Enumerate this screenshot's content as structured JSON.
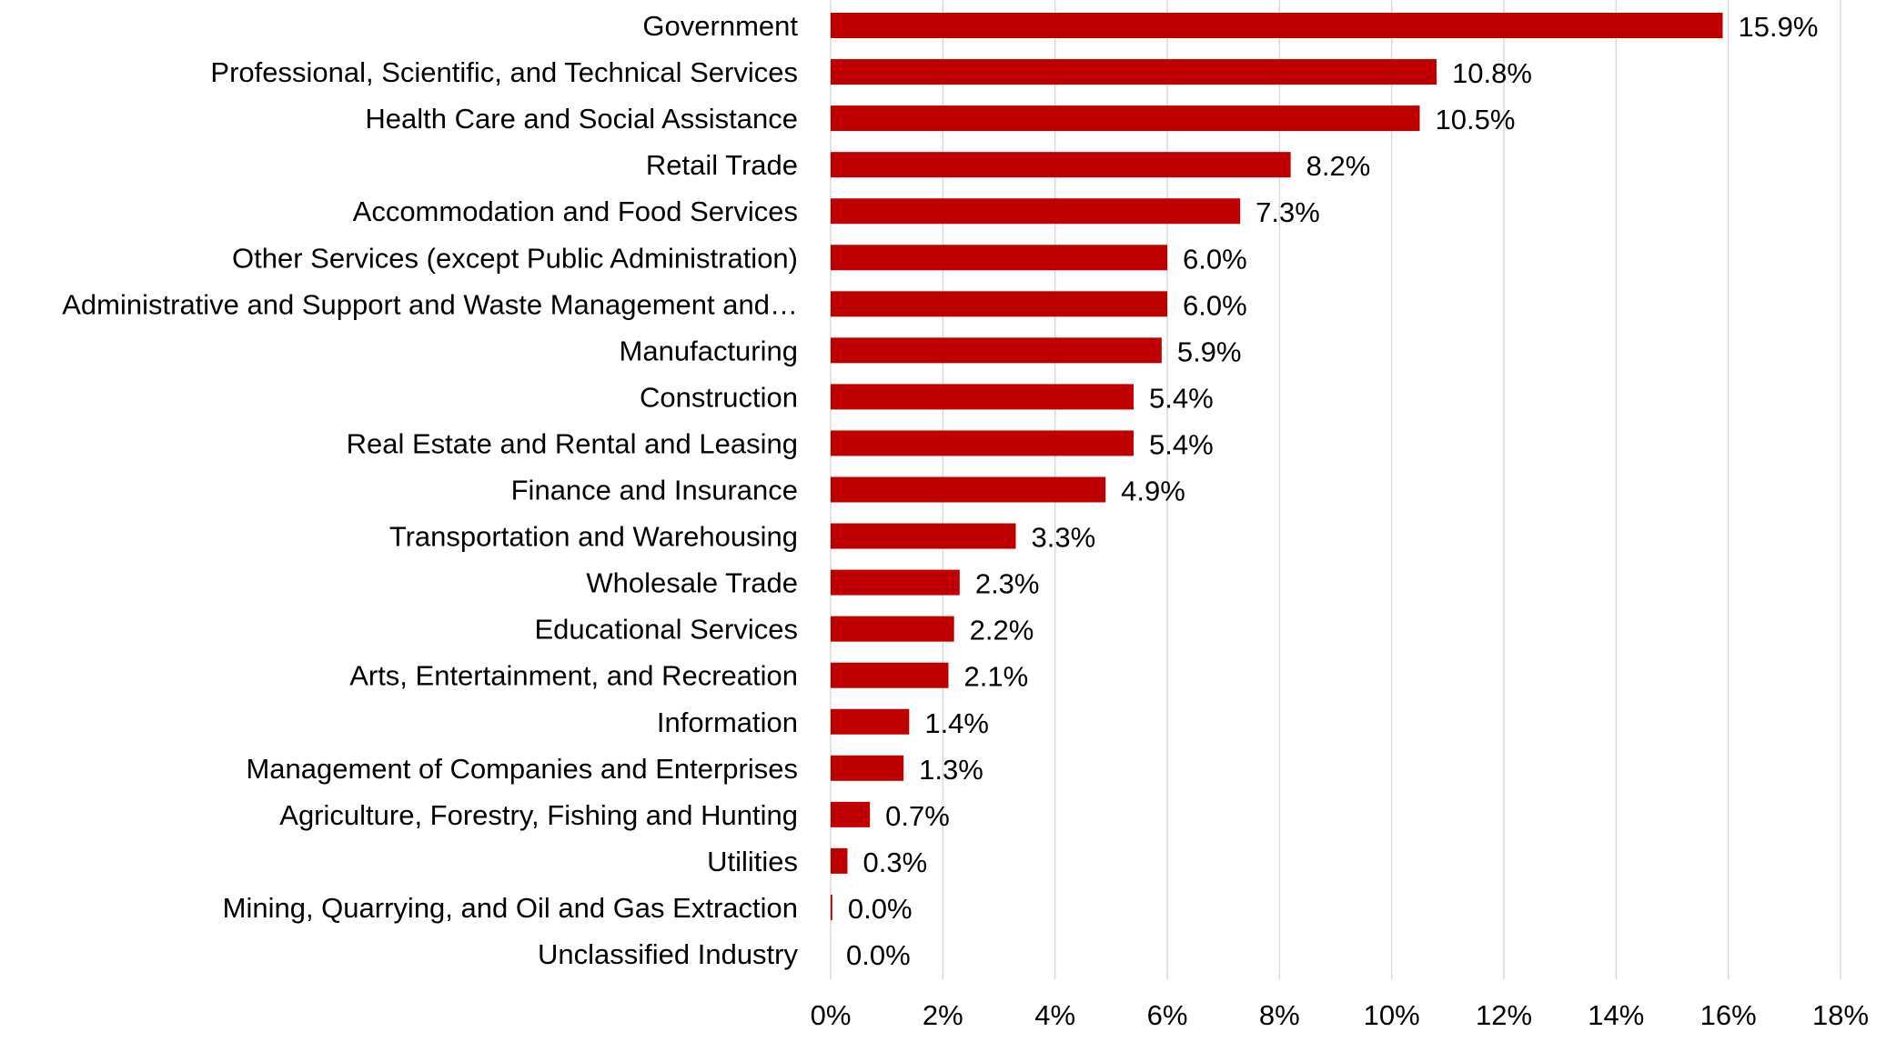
{
  "chart_data": {
    "type": "bar",
    "orientation": "horizontal",
    "title": "",
    "xlabel": "",
    "ylabel": "",
    "categories": [
      "Government",
      "Professional, Scientific, and Technical Services",
      "Health Care and Social Assistance",
      "Retail Trade",
      "Accommodation and Food Services",
      "Other Services (except Public Administration)",
      "Administrative and Support and Waste Management and…",
      "Manufacturing",
      "Construction",
      "Real Estate and Rental and Leasing",
      "Finance and Insurance",
      "Transportation and Warehousing",
      "Wholesale Trade",
      "Educational Services",
      "Arts, Entertainment, and Recreation",
      "Information",
      "Management of Companies and Enterprises",
      "Agriculture, Forestry, Fishing and Hunting",
      "Utilities",
      "Mining, Quarrying, and Oil and Gas Extraction",
      "Unclassified Industry"
    ],
    "values": [
      15.9,
      10.8,
      10.5,
      8.2,
      7.3,
      6.0,
      6.0,
      5.9,
      5.4,
      5.4,
      4.9,
      3.3,
      2.3,
      2.2,
      2.1,
      1.4,
      1.3,
      0.7,
      0.3,
      0.03,
      0.0
    ],
    "data_labels": [
      "15.9%",
      "10.8%",
      "10.5%",
      "8.2%",
      "7.3%",
      "6.0%",
      "6.0%",
      "5.9%",
      "5.4%",
      "5.4%",
      "4.9%",
      "3.3%",
      "2.3%",
      "2.2%",
      "2.1%",
      "1.4%",
      "1.3%",
      "0.7%",
      "0.3%",
      "0.0%",
      "0.0%"
    ],
    "xlim": [
      0,
      18
    ],
    "x_ticks": [
      0,
      2,
      4,
      6,
      8,
      10,
      12,
      14,
      16,
      18
    ],
    "x_tick_labels": [
      "0%",
      "2%",
      "4%",
      "6%",
      "8%",
      "10%",
      "12%",
      "14%",
      "16%",
      "18%"
    ],
    "grid": "vertical",
    "legend": "none",
    "bar_color": "#C00000",
    "grid_color": "#D9D9D9"
  }
}
